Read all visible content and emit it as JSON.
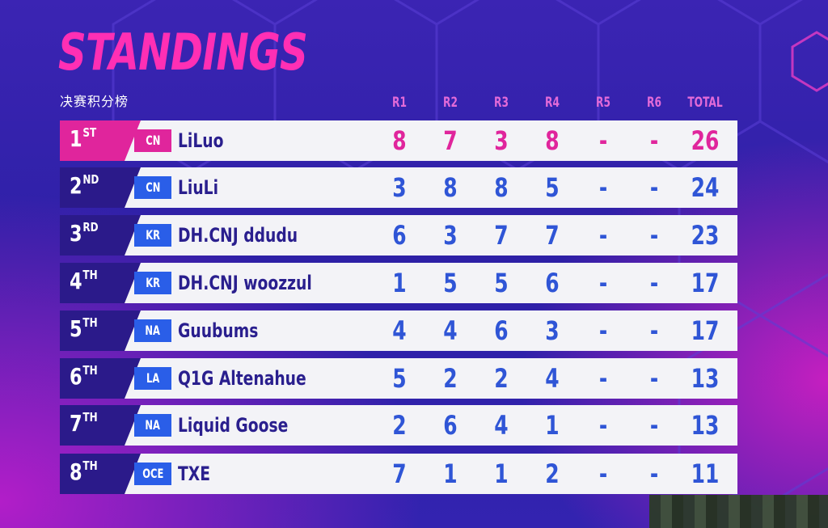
{
  "header": {
    "title": "STANDINGS",
    "subtitle": "决赛积分榜"
  },
  "columns": [
    "R1",
    "R2",
    "R3",
    "R4",
    "R5",
    "R6",
    "TOTAL"
  ],
  "colors": {
    "accent_pink": "#e0259c",
    "title_pink": "#ff2fb4",
    "region_blue": "#2a5ee8",
    "rank_navy": "#2b1a8a",
    "score_blue": "#2f55d6",
    "row_bg": "#f3f3f7"
  },
  "rows": [
    {
      "rank": "1",
      "suffix": "ST",
      "region": "CN",
      "name": "LiLuo",
      "scores": [
        "8",
        "7",
        "3",
        "8",
        "-",
        "-"
      ],
      "total": "26"
    },
    {
      "rank": "2",
      "suffix": "ND",
      "region": "CN",
      "name": "LiuLi",
      "scores": [
        "3",
        "8",
        "8",
        "5",
        "-",
        "-"
      ],
      "total": "24"
    },
    {
      "rank": "3",
      "suffix": "RD",
      "region": "KR",
      "name": "DH.CNJ ddudu",
      "scores": [
        "6",
        "3",
        "7",
        "7",
        "-",
        "-"
      ],
      "total": "23"
    },
    {
      "rank": "4",
      "suffix": "TH",
      "region": "KR",
      "name": "DH.CNJ woozzul",
      "scores": [
        "1",
        "5",
        "5",
        "6",
        "-",
        "-"
      ],
      "total": "17"
    },
    {
      "rank": "5",
      "suffix": "TH",
      "region": "NA",
      "name": "Guubums",
      "scores": [
        "4",
        "4",
        "6",
        "3",
        "-",
        "-"
      ],
      "total": "17"
    },
    {
      "rank": "6",
      "suffix": "TH",
      "region": "LA",
      "name": "Q1G Altenahue",
      "scores": [
        "5",
        "2",
        "2",
        "4",
        "-",
        "-"
      ],
      "total": "13"
    },
    {
      "rank": "7",
      "suffix": "TH",
      "region": "NA",
      "name": "Liquid Goose",
      "scores": [
        "2",
        "6",
        "4",
        "1",
        "-",
        "-"
      ],
      "total": "13"
    },
    {
      "rank": "8",
      "suffix": "TH",
      "region": "OCE",
      "name": "TXE",
      "scores": [
        "7",
        "1",
        "1",
        "2",
        "-",
        "-"
      ],
      "total": "11"
    }
  ]
}
